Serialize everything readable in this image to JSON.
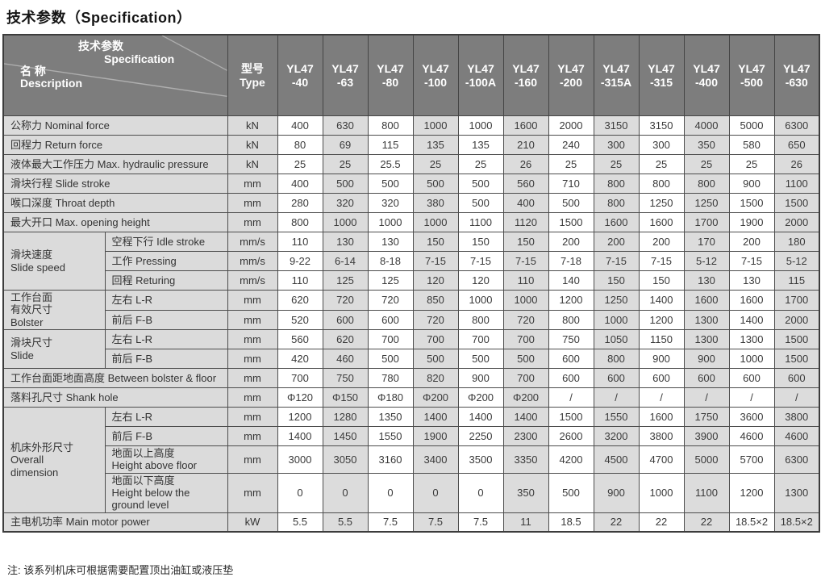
{
  "page_title": "技术参数（Specification）",
  "note": "注: 该系列机床可根据需要配置顶出油缸或液压垫",
  "colors": {
    "header_bg": "#7d7d7d",
    "label_bg": "#dbdbdb",
    "shade_bg": "#dcdcdc",
    "border": "#4d4d4d",
    "header_text": "#ffffff"
  },
  "table": {
    "corner": {
      "top_cn": "技术参数",
      "top_en": "Specification",
      "bottom_cn": "名 称",
      "bottom_en": "Description"
    },
    "type_col": "型号\nType",
    "models": [
      "YL47\n-40",
      "YL47\n-63",
      "YL47\n-80",
      "YL47\n-100",
      "YL47\n-100A",
      "YL47\n-160",
      "YL47\n-200",
      "YL47\n-315A",
      "YL47\n-315",
      "YL47\n-400",
      "YL47\n-500",
      "YL47\n-630"
    ],
    "rows": [
      {
        "label": "公称力  Nominal force",
        "unit": "kN",
        "values": [
          "400",
          "630",
          "800",
          "1000",
          "1000",
          "1600",
          "2000",
          "3150",
          "3150",
          "4000",
          "5000",
          "6300"
        ]
      },
      {
        "label": "回程力  Return force",
        "unit": "kN",
        "values": [
          "80",
          "69",
          "115",
          "135",
          "135",
          "210",
          "240",
          "300",
          "300",
          "350",
          "580",
          "650"
        ]
      },
      {
        "label": "液体最大工作压力  Max. hydraulic pressure",
        "unit": "kN",
        "values": [
          "25",
          "25",
          "25.5",
          "25",
          "25",
          "26",
          "25",
          "25",
          "25",
          "25",
          "25",
          "26"
        ]
      },
      {
        "label": "滑块行程  Slide stroke",
        "unit": "mm",
        "values": [
          "400",
          "500",
          "500",
          "500",
          "500",
          "560",
          "710",
          "800",
          "800",
          "800",
          "900",
          "1100"
        ]
      },
      {
        "label": "喉口深度  Throat depth",
        "unit": "mm",
        "values": [
          "280",
          "320",
          "320",
          "380",
          "500",
          "400",
          "500",
          "800",
          "1250",
          "1250",
          "1500",
          "1500"
        ]
      },
      {
        "label": "最大开口  Max. opening height",
        "unit": "mm",
        "values": [
          "800",
          "1000",
          "1000",
          "1000",
          "1100",
          "1120",
          "1500",
          "1600",
          "1600",
          "1700",
          "1900",
          "2000"
        ]
      },
      {
        "group": "滑块速度\nSlide speed",
        "subrows": [
          {
            "label": "空程下行 Idle stroke",
            "unit": "mm/s",
            "values": [
              "110",
              "130",
              "130",
              "150",
              "150",
              "150",
              "200",
              "200",
              "200",
              "170",
              "200",
              "180"
            ]
          },
          {
            "label": "工作 Pressing",
            "unit": "mm/s",
            "values": [
              "9-22",
              "6-14",
              "8-18",
              "7-15",
              "7-15",
              "7-15",
              "7-18",
              "7-15",
              "7-15",
              "5-12",
              "7-15",
              "5-12"
            ]
          },
          {
            "label": "回程 Returing",
            "unit": "mm/s",
            "values": [
              "110",
              "125",
              "125",
              "120",
              "120",
              "110",
              "140",
              "150",
              "150",
              "130",
              "130",
              "115"
            ]
          }
        ]
      },
      {
        "group": "工作台面\n有效尺寸\nBolster",
        "subrows": [
          {
            "label": "左右 L-R",
            "unit": "mm",
            "values": [
              "620",
              "720",
              "720",
              "850",
              "1000",
              "1000",
              "1200",
              "1250",
              "1400",
              "1600",
              "1600",
              "1700"
            ]
          },
          {
            "label": "前后 F-B",
            "unit": "mm",
            "values": [
              "520",
              "600",
              "600",
              "720",
              "800",
              "720",
              "800",
              "1000",
              "1200",
              "1300",
              "1400",
              "2000"
            ]
          }
        ]
      },
      {
        "group": "滑块尺寸\nSlide",
        "subrows": [
          {
            "label": "左右 L-R",
            "unit": "mm",
            "values": [
              "560",
              "620",
              "700",
              "700",
              "700",
              "700",
              "750",
              "1050",
              "1150",
              "1300",
              "1300",
              "1500"
            ]
          },
          {
            "label": "前后 F-B",
            "unit": "mm",
            "values": [
              "420",
              "460",
              "500",
              "500",
              "500",
              "500",
              "600",
              "800",
              "900",
              "900",
              "1000",
              "1500"
            ]
          }
        ]
      },
      {
        "label": "工作台面距地面高度 Between bolster & floor",
        "unit": "mm",
        "values": [
          "700",
          "750",
          "780",
          "820",
          "900",
          "700",
          "600",
          "600",
          "600",
          "600",
          "600",
          "600"
        ]
      },
      {
        "label": "落料孔尺寸  Shank hole",
        "unit": "mm",
        "values": [
          "Φ120",
          "Φ150",
          "Φ180",
          "Φ200",
          "Φ200",
          "Φ200",
          "/",
          "/",
          "/",
          "/",
          "/",
          "/"
        ]
      },
      {
        "group": "机床外形尺寸\nOverall\ndimension",
        "subrows": [
          {
            "label": "左右 L-R",
            "unit": "mm",
            "values": [
              "1200",
              "1280",
              "1350",
              "1400",
              "1400",
              "1400",
              "1500",
              "1550",
              "1600",
              "1750",
              "3600",
              "3800"
            ]
          },
          {
            "label": "前后 F-B",
            "unit": "mm",
            "values": [
              "1400",
              "1450",
              "1550",
              "1900",
              "2250",
              "2300",
              "2600",
              "3200",
              "3800",
              "3900",
              "4600",
              "4600"
            ]
          },
          {
            "label": "地面以上高度\nHeight above floor",
            "unit": "mm",
            "values": [
              "3000",
              "3050",
              "3160",
              "3400",
              "3500",
              "3350",
              "4200",
              "4500",
              "4700",
              "5000",
              "5700",
              "6300"
            ]
          },
          {
            "label": "地面以下高度\nHeight below the\nground level",
            "unit": "mm",
            "values": [
              "0",
              "0",
              "0",
              "0",
              "0",
              "350",
              "500",
              "900",
              "1000",
              "1100",
              "1200",
              "1300"
            ]
          }
        ]
      },
      {
        "label": "主电机功率 Main motor power",
        "unit": "kW",
        "values": [
          "5.5",
          "5.5",
          "7.5",
          "7.5",
          "7.5",
          "11",
          "18.5",
          "22",
          "22",
          "22",
          "18.5×2",
          "18.5×2"
        ]
      }
    ]
  }
}
